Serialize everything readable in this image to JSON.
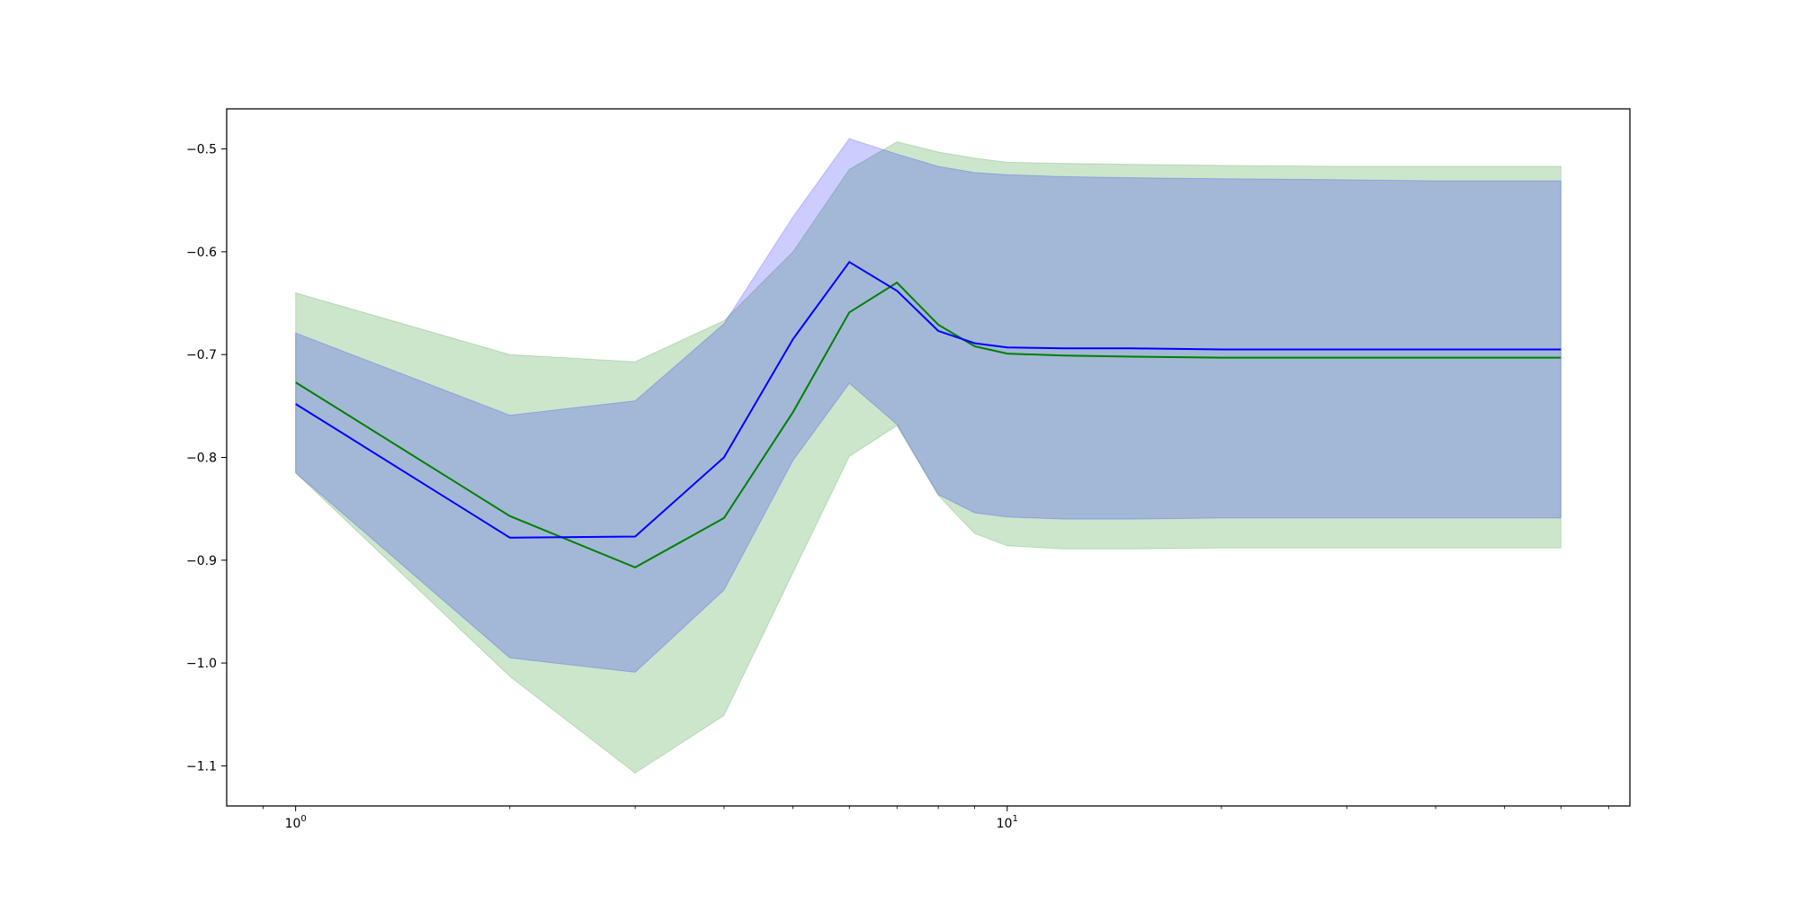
{
  "chart_data": {
    "type": "line",
    "title": "",
    "xlabel": "",
    "ylabel": "",
    "xscale": "log",
    "xlim": [
      0.8,
      75
    ],
    "ylim": [
      -1.139,
      -0.461
    ],
    "grid": false,
    "legend": "none",
    "x_ticks": [
      {
        "value": 1,
        "base": "10",
        "exp": "0"
      },
      {
        "value": 10,
        "base": "10",
        "exp": "1"
      }
    ],
    "y_ticks": [
      {
        "value": -0.5,
        "label": "−0.5"
      },
      {
        "value": -0.6,
        "label": "−0.6"
      },
      {
        "value": -0.7,
        "label": "−0.7"
      },
      {
        "value": -0.8,
        "label": "−0.8"
      },
      {
        "value": -0.9,
        "label": "−0.9"
      },
      {
        "value": -1.0,
        "label": "−1.0"
      },
      {
        "value": -1.1,
        "label": "−1.1"
      }
    ],
    "x": [
      1,
      2,
      3,
      4,
      5,
      6,
      7,
      8,
      9,
      10,
      12,
      15,
      20,
      30,
      40,
      50,
      60
    ],
    "series": [
      {
        "color": "#008000",
        "fill_color": "#008000",
        "fill_opacity": 0.2,
        "values": [
          -0.727,
          -0.857,
          -0.907,
          -0.859,
          -0.756,
          -0.659,
          -0.63,
          -0.671,
          -0.692,
          -0.699,
          -0.701,
          -0.702,
          -0.703,
          -0.703,
          -0.703,
          -0.703,
          -0.703
        ],
        "lower": [
          -0.815,
          -1.013,
          -1.107,
          -1.051,
          -0.912,
          -0.799,
          -0.769,
          -0.837,
          -0.874,
          -0.886,
          -0.889,
          -0.889,
          -0.888,
          -0.888,
          -0.888,
          -0.888,
          -0.888
        ],
        "upper": [
          -0.64,
          -0.7,
          -0.707,
          -0.667,
          -0.6,
          -0.52,
          -0.493,
          -0.503,
          -0.509,
          -0.513,
          -0.514,
          -0.515,
          -0.516,
          -0.517,
          -0.517,
          -0.517,
          -0.517
        ]
      },
      {
        "color": "#0000ff",
        "fill_color": "#0000ff",
        "fill_opacity": 0.2,
        "values": [
          -0.748,
          -0.878,
          -0.877,
          -0.8,
          -0.685,
          -0.61,
          -0.638,
          -0.677,
          -0.689,
          -0.693,
          -0.694,
          -0.694,
          -0.695,
          -0.695,
          -0.695,
          -0.695,
          -0.695
        ],
        "lower": [
          -0.815,
          -0.995,
          -1.009,
          -0.929,
          -0.803,
          -0.728,
          -0.768,
          -0.836,
          -0.854,
          -0.858,
          -0.86,
          -0.86,
          -0.859,
          -0.859,
          -0.859,
          -0.859,
          -0.859
        ],
        "upper": [
          -0.679,
          -0.759,
          -0.745,
          -0.67,
          -0.566,
          -0.49,
          -0.505,
          -0.517,
          -0.523,
          -0.525,
          -0.527,
          -0.528,
          -0.529,
          -0.53,
          -0.531,
          -0.531,
          -0.531
        ]
      }
    ]
  }
}
